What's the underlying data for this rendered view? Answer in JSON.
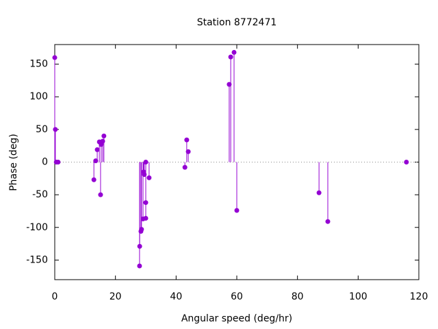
{
  "chart_data": {
    "type": "stem",
    "title": "Station 8772471",
    "x_label": "Angular speed (deg/hr)",
    "y_label": "Phase (deg)",
    "series": [
      {
        "color": "#9400d3",
        "x": [
          0,
          0.2,
          0.5,
          1.1,
          12.9,
          13.5,
          14.0,
          14.7,
          15.1,
          15.3,
          15.8,
          16.2,
          28.0,
          27.95,
          28.4,
          28.6,
          29.1,
          29.3,
          29.5,
          30.0,
          30.0,
          30.0,
          31.1,
          42.9,
          43.5,
          44.0,
          57.5,
          58.0,
          59.1,
          60.0,
          87.1,
          90.0,
          115.9
        ],
        "values": [
          160,
          50,
          0,
          0,
          -27,
          2,
          19,
          31,
          -50,
          27,
          32,
          40,
          -129,
          -159,
          -106,
          -103,
          -87,
          -15,
          -19,
          0,
          -62,
          -86,
          -24,
          -8,
          34,
          16,
          119,
          161,
          168,
          -74,
          -47,
          -91,
          0
        ]
      }
    ],
    "xlim": [
      0,
      120
    ],
    "xticks": [
      0,
      20,
      40,
      60,
      80,
      100,
      120
    ],
    "ylim": [
      -180,
      180
    ],
    "yticks": [
      -150,
      -100,
      -50,
      0,
      50,
      100,
      150
    ],
    "zero_axis": true
  }
}
